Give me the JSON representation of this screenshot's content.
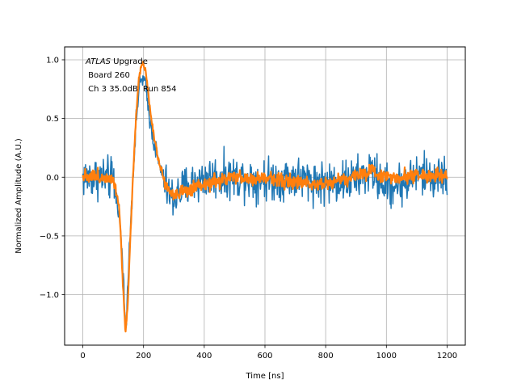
{
  "chart_data": {
    "type": "line",
    "title": "",
    "xlabel": "Time [ns]",
    "ylabel": "Normalized Amplitude (A.U.)",
    "xlim": [
      -60,
      1260
    ],
    "ylim": [
      -1.43,
      1.11
    ],
    "xticks": [
      0,
      200,
      400,
      600,
      800,
      1000,
      1200
    ],
    "yticks": [
      -1.0,
      -0.5,
      0.0,
      0.5,
      1.0
    ],
    "xtick_labels": [
      "0",
      "200",
      "400",
      "600",
      "800",
      "1000",
      "1200"
    ],
    "ytick_labels": [
      "−1.0",
      "−0.5",
      "0.0",
      "0.5",
      "1.0"
    ],
    "grid": true,
    "legend": "none",
    "annotation": {
      "line1_italic": "ATLAS",
      "line1_rest": " Upgrade",
      "line2": " Board 260",
      "line3": " Ch 3 35.0dB  Run 854"
    },
    "series": [
      {
        "color": "#1f77b4",
        "noise_amplitude": 0.09,
        "points": [
          [
            0,
            0.0
          ],
          [
            60,
            0.0
          ],
          [
            100,
            -0.02
          ],
          [
            120,
            -0.3
          ],
          [
            135,
            -0.9
          ],
          [
            140,
            -1.3
          ],
          [
            147,
            -1.0
          ],
          [
            155,
            -0.5
          ],
          [
            165,
            0.0
          ],
          [
            175,
            0.45
          ],
          [
            185,
            0.75
          ],
          [
            195,
            0.85
          ],
          [
            205,
            0.8
          ],
          [
            215,
            0.6
          ],
          [
            230,
            0.35
          ],
          [
            250,
            0.12
          ],
          [
            270,
            -0.05
          ],
          [
            285,
            -0.15
          ],
          [
            300,
            -0.18
          ],
          [
            330,
            -0.1
          ],
          [
            360,
            -0.05
          ],
          [
            420,
            0.0
          ],
          [
            520,
            0.0
          ],
          [
            600,
            -0.02
          ],
          [
            700,
            0.0
          ],
          [
            800,
            -0.05
          ],
          [
            900,
            -0.02
          ],
          [
            950,
            0.05
          ],
          [
            1000,
            -0.08
          ],
          [
            1060,
            -0.05
          ],
          [
            1100,
            0.02
          ],
          [
            1200,
            0.0
          ]
        ]
      },
      {
        "color": "#ff7f0e",
        "noise_amplitude": 0.03,
        "points": [
          [
            0,
            0.02
          ],
          [
            60,
            0.0
          ],
          [
            100,
            0.0
          ],
          [
            120,
            -0.25
          ],
          [
            132,
            -0.9
          ],
          [
            140,
            -1.31
          ],
          [
            148,
            -1.1
          ],
          [
            155,
            -0.6
          ],
          [
            165,
            0.0
          ],
          [
            175,
            0.5
          ],
          [
            185,
            0.85
          ],
          [
            195,
            0.98
          ],
          [
            202,
            0.96
          ],
          [
            210,
            0.85
          ],
          [
            225,
            0.5
          ],
          [
            245,
            0.2
          ],
          [
            265,
            0.0
          ],
          [
            285,
            -0.12
          ],
          [
            300,
            -0.15
          ],
          [
            330,
            -0.13
          ],
          [
            370,
            -0.1
          ],
          [
            420,
            -0.05
          ],
          [
            500,
            0.0
          ],
          [
            560,
            -0.02
          ],
          [
            620,
            0.0
          ],
          [
            700,
            -0.05
          ],
          [
            800,
            -0.05
          ],
          [
            880,
            0.0
          ],
          [
            950,
            0.05
          ],
          [
            1000,
            0.0
          ],
          [
            1100,
            0.02
          ],
          [
            1200,
            0.0
          ]
        ]
      }
    ]
  }
}
